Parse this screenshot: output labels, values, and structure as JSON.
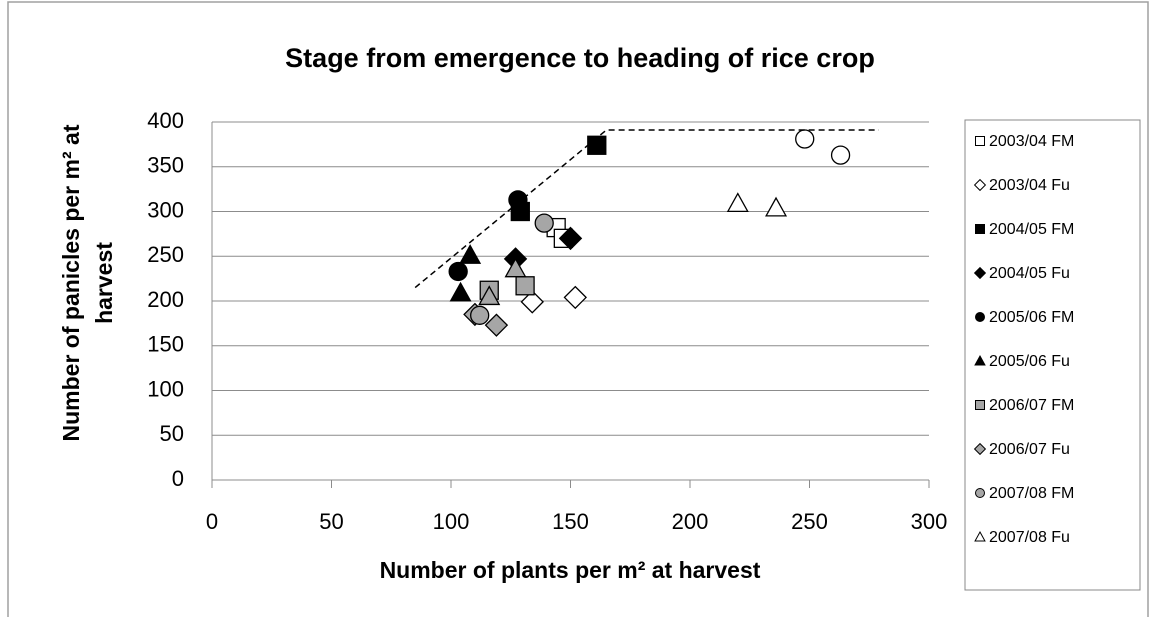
{
  "chart_data": {
    "type": "scatter",
    "title": "Stage from emergence to heading of rice crop",
    "xlabel": "Number of plants per m² at harvest",
    "ylabel": "Number of panicles  per m² at harvest",
    "xlim": [
      0,
      300
    ],
    "xticks": [
      0,
      50,
      100,
      150,
      200,
      250,
      300
    ],
    "ylim": [
      0,
      400
    ],
    "yticks": [
      0,
      50,
      100,
      150,
      200,
      250,
      300,
      350,
      400
    ],
    "grid": true,
    "legend": "right",
    "series": [
      {
        "name": "2003/04 FM",
        "marker": "square",
        "color": "#ffffff",
        "x": [
          144,
          147
        ],
        "values": [
          282,
          270
        ]
      },
      {
        "name": "2003/04 Fu",
        "marker": "diamond",
        "color": "#ffffff",
        "x": [
          134,
          152
        ],
        "values": [
          199,
          204
        ]
      },
      {
        "name": "2004/05 FM",
        "marker": "square",
        "color": "#000000",
        "x": [
          161,
          129
        ],
        "values": [
          374,
          300
        ]
      },
      {
        "name": "2004/05 Fu",
        "marker": "diamond",
        "color": "#000000",
        "x": [
          127,
          150
        ],
        "values": [
          247,
          270
        ]
      },
      {
        "name": "2005/06 FM",
        "marker": "circle",
        "color": "#000000",
        "x": [
          103,
          128
        ],
        "values": [
          233,
          313
        ]
      },
      {
        "name": "2005/06 Fu",
        "marker": "triangle",
        "color": "#000000",
        "x": [
          108,
          104
        ],
        "values": [
          251,
          209
        ]
      },
      {
        "name": "2006/07 FM",
        "marker": "square",
        "color": "#a6a6a6",
        "x": [
          116,
          131
        ],
        "values": [
          212,
          217
        ]
      },
      {
        "name": "2006/07 Fu",
        "marker": "diamond",
        "color": "#a6a6a6",
        "x": [
          119,
          110
        ],
        "values": [
          173,
          185
        ]
      },
      {
        "name": "2007/08 FM",
        "marker": "circle",
        "color": "#a6a6a6",
        "x": [
          139,
          112
        ],
        "values": [
          287,
          184
        ]
      },
      {
        "name": "2007/08 Fu",
        "marker": "triangle",
        "color": "#ffffff",
        "x": [
          220,
          236
        ],
        "values": [
          309,
          304
        ]
      },
      {
        "marker": "triangle",
        "color": "#a6a6a6",
        "x": [
          116,
          127
        ],
        "values": [
          205,
          236
        ]
      },
      {
        "marker": "circle",
        "color": "#ffffff",
        "x": [
          248,
          263
        ],
        "values": [
          381,
          363
        ]
      },
      {
        "marker": "line",
        "style": "dashed",
        "color": "#000000",
        "x": [
          85,
          165,
          279
        ],
        "values": [
          215,
          391,
          391
        ]
      }
    ]
  }
}
